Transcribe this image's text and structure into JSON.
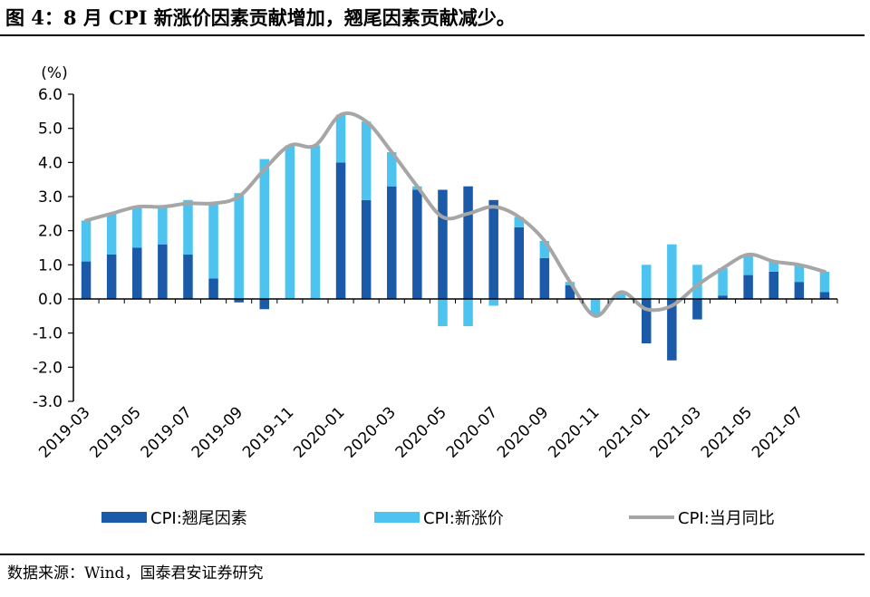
{
  "title": "图 4：8 月 CPI 新涨价因素贡献增加，翘尾因素贡献减少。",
  "source": "数据来源：Wind，国泰君安证券研究",
  "chart_data": {
    "type": "bar",
    "unit_label": "(%)",
    "ylim": [
      -3.0,
      6.0
    ],
    "yticks": [
      "6.0",
      "5.0",
      "4.0",
      "3.0",
      "2.0",
      "1.0",
      "0.0",
      "-1.0",
      "-2.0",
      "-3.0"
    ],
    "ytick_values": [
      6,
      5,
      4,
      3,
      2,
      1,
      0,
      -1,
      -2,
      -3
    ],
    "categories": [
      "2019-03",
      "2019-04",
      "2019-05",
      "2019-06",
      "2019-07",
      "2019-08",
      "2019-09",
      "2019-10",
      "2019-11",
      "2019-12",
      "2020-01",
      "2020-02",
      "2020-03",
      "2020-04",
      "2020-05",
      "2020-06",
      "2020-07",
      "2020-08",
      "2020-09",
      "2020-10",
      "2020-11",
      "2020-12",
      "2021-01",
      "2021-02",
      "2021-03",
      "2021-04",
      "2021-05",
      "2021-06",
      "2021-07",
      "2021-08"
    ],
    "xtick_labels": [
      "2019-03",
      "2019-05",
      "2019-07",
      "2019-09",
      "2019-11",
      "2020-01",
      "2020-03",
      "2020-05",
      "2020-07",
      "2020-09",
      "2020-11",
      "2021-01",
      "2021-03",
      "2021-05",
      "2021-07"
    ],
    "stacked": true,
    "grid": false,
    "legend_position": "bottom",
    "series": [
      {
        "name": "CPI:翘尾因素",
        "type": "bar",
        "color": "#1a5aa8",
        "values": [
          1.1,
          1.3,
          1.5,
          1.6,
          1.3,
          0.6,
          -0.1,
          -0.3,
          0.0,
          0.0,
          4.0,
          2.9,
          3.3,
          3.2,
          3.2,
          3.3,
          2.9,
          2.1,
          1.2,
          0.4,
          0.0,
          0.0,
          -1.3,
          -1.8,
          -0.6,
          0.1,
          0.7,
          0.8,
          0.5,
          0.2
        ]
      },
      {
        "name": "CPI:新涨价",
        "type": "bar",
        "color": "#4dc3f0",
        "values": [
          1.2,
          1.2,
          1.2,
          1.1,
          1.6,
          2.2,
          3.1,
          4.1,
          4.5,
          4.5,
          1.4,
          2.3,
          1.0,
          0.1,
          -0.8,
          -0.8,
          -0.2,
          0.3,
          0.5,
          0.1,
          -0.5,
          0.2,
          1.0,
          1.6,
          1.0,
          0.8,
          0.6,
          0.3,
          0.5,
          0.6
        ]
      },
      {
        "name": "CPI:当月同比",
        "type": "line",
        "color": "#a6a6a6",
        "values": [
          2.3,
          2.5,
          2.7,
          2.7,
          2.8,
          2.8,
          3.0,
          3.8,
          4.5,
          4.5,
          5.4,
          5.2,
          4.3,
          3.3,
          2.4,
          2.5,
          2.7,
          2.4,
          1.7,
          0.5,
          -0.5,
          0.2,
          -0.3,
          -0.2,
          0.4,
          0.9,
          1.3,
          1.1,
          1.0,
          0.8
        ]
      }
    ]
  }
}
